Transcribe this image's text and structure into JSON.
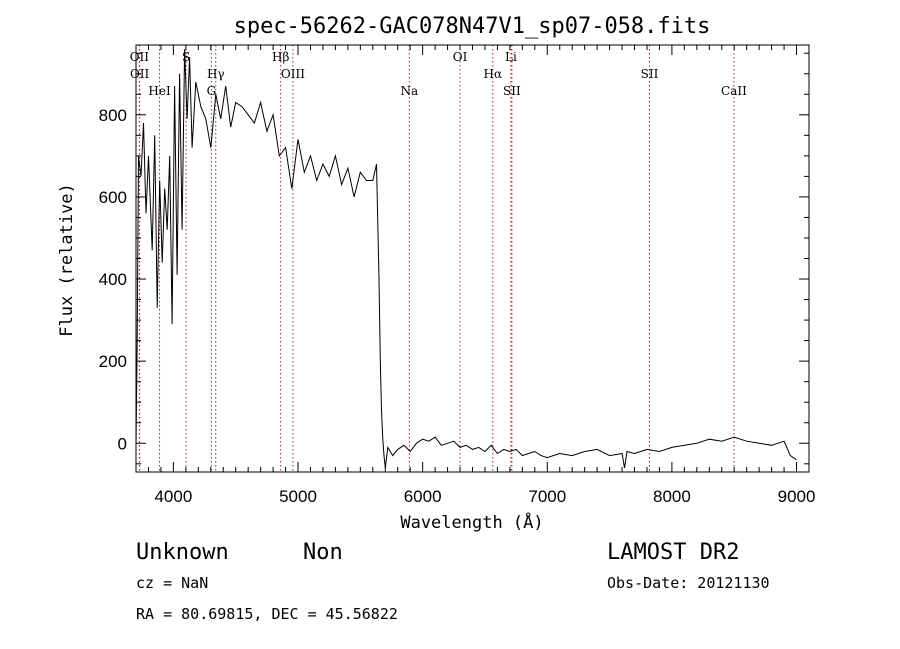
{
  "chart_data": {
    "type": "line",
    "title": "spec-56262-GAC078N47V1_sp07-058.fits",
    "xlabel": "Wavelength (Å)",
    "ylabel": "Flux (relative)",
    "xlim": [
      3700,
      9100
    ],
    "ylim": [
      -70,
      970
    ],
    "xticks": [
      4000,
      5000,
      6000,
      7000,
      8000,
      9000
    ],
    "yticks": [
      0,
      200,
      400,
      600,
      800
    ],
    "grid": false,
    "series": [
      {
        "x": [
          3700,
          3710,
          3720,
          3740,
          3760,
          3780,
          3800,
          3830,
          3850,
          3870,
          3890,
          3910,
          3930,
          3950,
          3970,
          3990,
          4010,
          4030,
          4050,
          4070,
          4090,
          4110,
          4130,
          4150,
          4180,
          4220,
          4260,
          4300,
          4340,
          4380,
          4420,
          4460,
          4500,
          4550,
          4600,
          4650,
          4700,
          4750,
          4800,
          4850,
          4900,
          4950,
          5000,
          5050,
          5100,
          5150,
          5200,
          5250,
          5300,
          5350,
          5400,
          5450,
          5500,
          5550,
          5600,
          5630,
          5650,
          5660,
          5670,
          5680,
          5690,
          5700,
          5720,
          5760,
          5800,
          5850,
          5900,
          5950,
          6000,
          6050,
          6100,
          6150,
          6200,
          6250,
          6300,
          6350,
          6400,
          6450,
          6500,
          6550,
          6600,
          6650,
          6700,
          6750,
          6800,
          6850,
          6900,
          6950,
          7000,
          7100,
          7200,
          7300,
          7400,
          7500,
          7600,
          7620,
          7640,
          7700,
          7800,
          7900,
          8000,
          8100,
          8200,
          8300,
          8400,
          8500,
          8600,
          8700,
          8800,
          8900,
          8950,
          9000
        ],
        "y": [
          -10,
          250,
          700,
          650,
          780,
          560,
          700,
          470,
          750,
          330,
          640,
          440,
          620,
          520,
          700,
          290,
          870,
          410,
          900,
          520,
          960,
          790,
          940,
          720,
          880,
          820,
          790,
          720,
          850,
          790,
          870,
          770,
          830,
          820,
          800,
          780,
          830,
          760,
          800,
          700,
          720,
          620,
          740,
          660,
          700,
          640,
          680,
          650,
          700,
          630,
          670,
          600,
          660,
          640,
          640,
          680,
          400,
          200,
          80,
          10,
          -30,
          -60,
          -10,
          -30,
          -15,
          -5,
          -20,
          0,
          10,
          5,
          15,
          -5,
          0,
          5,
          -10,
          -5,
          -15,
          -10,
          -20,
          -5,
          -25,
          -15,
          -20,
          -15,
          -30,
          -25,
          -20,
          -30,
          -35,
          -25,
          -30,
          -20,
          -15,
          -30,
          -25,
          -60,
          -20,
          -25,
          -15,
          -20,
          -10,
          -5,
          0,
          10,
          5,
          15,
          5,
          0,
          -5,
          5,
          -30,
          -40
        ]
      }
    ],
    "line_markers": [
      {
        "label": "OII",
        "x": 3727
      },
      {
        "label": "OII",
        "x": 3729
      },
      {
        "label": "HeI",
        "x": 3889
      },
      {
        "label": "S",
        "x": 4102
      },
      {
        "label": "Hγ",
        "x": 4340
      },
      {
        "label": "G",
        "x": 4305
      },
      {
        "label": "Hβ",
        "x": 4861
      },
      {
        "label": "OIII",
        "x": 4959
      },
      {
        "label": "Na",
        "x": 5893
      },
      {
        "label": "OI",
        "x": 6300
      },
      {
        "label": "Hα",
        "x": 6563
      },
      {
        "label": "SII",
        "x": 6716
      },
      {
        "label": "Li",
        "x": 6708
      },
      {
        "label": "SII",
        "x": 7820
      },
      {
        "label": "CaII",
        "x": 8498
      }
    ]
  },
  "info": {
    "class": "Unknown",
    "subclass": "Non",
    "survey": "LAMOST DR2",
    "cz": "cz = NaN",
    "obs_date": "Obs-Date: 20121130",
    "coords": "RA =  80.69815, DEC =  45.56822"
  }
}
